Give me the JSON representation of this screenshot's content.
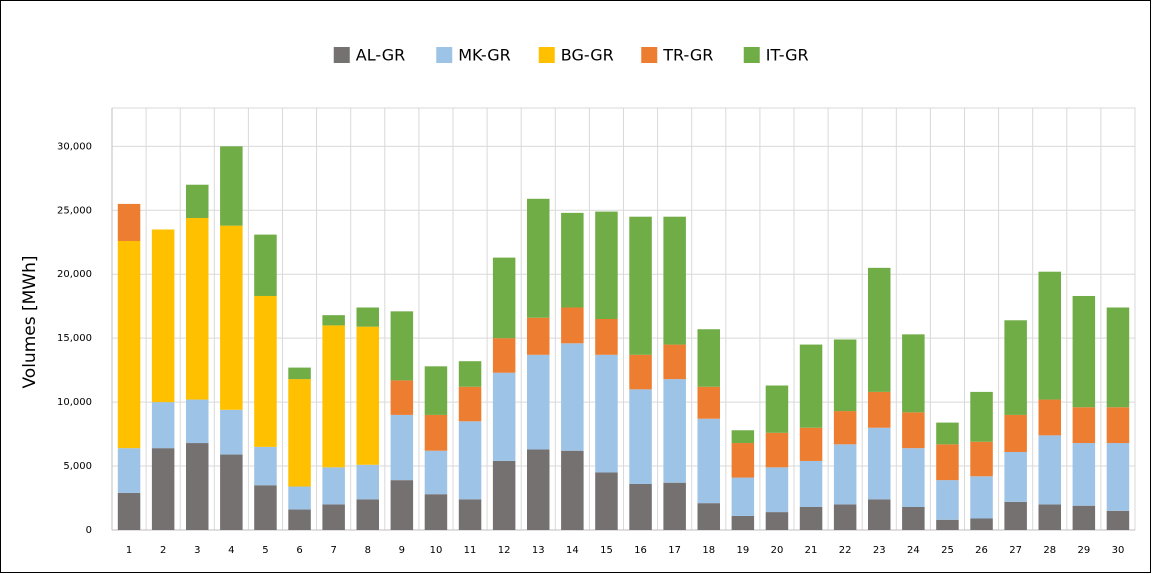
{
  "chart_data": {
    "type": "bar",
    "stacked": true,
    "y_label": "Volumes [MWh]",
    "categories": [
      "1",
      "2",
      "3",
      "4",
      "5",
      "6",
      "7",
      "8",
      "9",
      "10",
      "11",
      "12",
      "13",
      "14",
      "15",
      "16",
      "17",
      "18",
      "19",
      "20",
      "21",
      "22",
      "23",
      "24",
      "25",
      "26",
      "27",
      "28",
      "29",
      "30"
    ],
    "series": [
      {
        "name": "AL-GR",
        "color": "#767171",
        "values": [
          2900,
          6400,
          6800,
          5900,
          3500,
          1600,
          2000,
          2400,
          3900,
          2800,
          2400,
          5400,
          6300,
          6200,
          4500,
          3600,
          3700,
          2100,
          1100,
          1400,
          1800,
          2000,
          2400,
          1800,
          800,
          900,
          2200,
          2000,
          1900,
          1500
        ]
      },
      {
        "name": "MK-GR",
        "color": "#9dc3e6",
        "values": [
          3500,
          3600,
          3400,
          3500,
          3000,
          1800,
          2900,
          2700,
          5100,
          3400,
          6100,
          6900,
          7400,
          8400,
          9200,
          7400,
          8100,
          6600,
          3000,
          3500,
          3600,
          4700,
          5600,
          4600,
          3100,
          3300,
          3900,
          5400,
          4900,
          5300
        ]
      },
      {
        "name": "BG-GR",
        "color": "#ffc000",
        "values": [
          16200,
          13500,
          14200,
          14400,
          11800,
          8400,
          11100,
          10800,
          0,
          0,
          0,
          0,
          0,
          0,
          0,
          0,
          0,
          0,
          0,
          0,
          0,
          0,
          0,
          0,
          0,
          0,
          0,
          0,
          0,
          0
        ]
      },
      {
        "name": "TR-GR",
        "color": "#ed7d31",
        "values": [
          2900,
          0,
          0,
          0,
          0,
          0,
          0,
          0,
          2700,
          2800,
          2700,
          2700,
          2900,
          2800,
          2800,
          2700,
          2700,
          2500,
          2700,
          2700,
          2600,
          2600,
          2800,
          2800,
          2800,
          2700,
          2900,
          2800,
          2800,
          2800
        ]
      },
      {
        "name": "IT-GR",
        "color": "#70ad47",
        "values": [
          0,
          0,
          2600,
          6200,
          4800,
          900,
          800,
          1500,
          5400,
          3800,
          2000,
          6300,
          9300,
          7400,
          8400,
          10800,
          10000,
          4500,
          1000,
          3700,
          6500,
          5600,
          9700,
          6100,
          1700,
          3900,
          7400,
          10000,
          8700,
          7800
        ]
      }
    ],
    "ylim": [
      0,
      33000
    ],
    "yticks": [
      {
        "value": 0,
        "label": "0"
      },
      {
        "value": 5000,
        "label": "5,000"
      },
      {
        "value": 10000,
        "label": "10,000"
      },
      {
        "value": 15000,
        "label": "15,000"
      },
      {
        "value": 20000,
        "label": "20,000"
      },
      {
        "value": 25000,
        "label": "25,000"
      },
      {
        "value": 30000,
        "label": "30,000"
      }
    ],
    "grid": true,
    "legend": "top"
  }
}
